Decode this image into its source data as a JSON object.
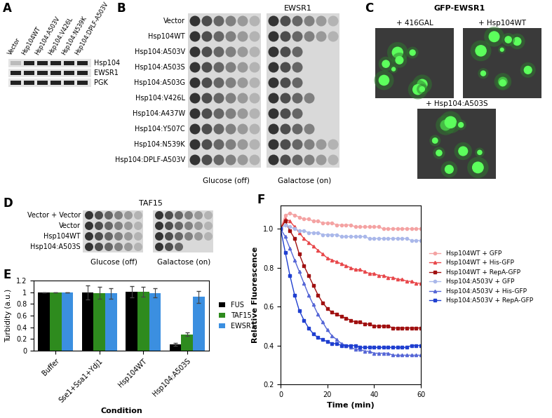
{
  "panels": {
    "A": {
      "label": "A",
      "columns": [
        "Vector",
        "Hsp104WT",
        "Hsp104:A503V",
        "Hsp104:V426L",
        "Hsp104:N539K",
        "Hsp104:DPLF-A503V"
      ],
      "rows": [
        "Hsp104",
        "EWSR1",
        "PGK"
      ]
    },
    "B": {
      "label": "B",
      "title": "EWSR1",
      "rows": [
        "Vector",
        "Hsp104WT",
        "Hsp104:A503V",
        "Hsp104:A503S",
        "Hsp104:A503G",
        "Hsp104:V426L",
        "Hsp104:A437W",
        "Hsp104:Y507C",
        "Hsp104:N539K",
        "Hsp104:DPLF-A503V"
      ],
      "conditions": [
        "Glucose (off)",
        "Galactose (on)"
      ]
    },
    "C": {
      "label": "C",
      "title": "GFP-EWSR1",
      "images": [
        "+ 416GAL",
        "+ Hsp104WT",
        "+ Hsp104:A503S"
      ]
    },
    "D": {
      "label": "D",
      "title": "TAF15",
      "rows": [
        "Vector + Vector",
        "Vector",
        "Hsp104WT",
        "Hsp104:A503S"
      ],
      "conditions": [
        "Glucose (off)",
        "Galactose (on)"
      ]
    }
  },
  "chart_data": [
    {
      "type": "bar",
      "annotations": [
        "E"
      ],
      "x_label": "Condition",
      "y_label": "Turbidity (a.u.)",
      "categories": [
        "Buffer",
        "Sse1+Ssa1+Ydj1",
        "Hsp104WT",
        "Hsp104:A503S"
      ],
      "series": [
        {
          "name": "FUS",
          "color": "#000000",
          "values": [
            1,
            1.0,
            1.01,
            0.11
          ],
          "errors": [
            0,
            0.12,
            0.1,
            0.02
          ]
        },
        {
          "name": "TAF15",
          "color": "#2e8b1e",
          "values": [
            1,
            0.99,
            1.01,
            0.28
          ],
          "errors": [
            0,
            0.1,
            0.08,
            0.03
          ]
        },
        {
          "name": "EWSR1",
          "color": "#3b8fe0",
          "values": [
            1,
            0.98,
            0.99,
            0.92
          ],
          "errors": [
            0,
            0.09,
            0.08,
            0.1
          ]
        }
      ],
      "ylim": [
        0,
        1.2
      ],
      "yticks": [
        0,
        0.2,
        0.4,
        0.6,
        0.8,
        1,
        1.2
      ],
      "legend": "right"
    },
    {
      "type": "line",
      "annotations": [
        "F"
      ],
      "x_label": "Time (min)",
      "y_label": "Relative Fluorescence",
      "x": [
        0,
        2,
        4,
        6,
        8,
        10,
        12,
        14,
        16,
        18,
        20,
        22,
        24,
        26,
        28,
        30,
        32,
        34,
        36,
        38,
        40,
        42,
        44,
        46,
        48,
        50,
        52,
        54,
        56,
        58,
        60
      ],
      "series": [
        {
          "name": "Hsp104WT + GFP",
          "color": "#f4a3a3",
          "marker": "circle",
          "values": [
            1.0,
            1.07,
            1.08,
            1.07,
            1.06,
            1.05,
            1.05,
            1.04,
            1.04,
            1.03,
            1.03,
            1.03,
            1.02,
            1.02,
            1.02,
            1.02,
            1.01,
            1.01,
            1.01,
            1.01,
            1.01,
            1.01,
            1.0,
            1.0,
            1.0,
            1.0,
            1.0,
            1.0,
            1.0,
            1.0,
            1.0
          ]
        },
        {
          "name": "Hsp104WT + His-GFP",
          "color": "#e8474a",
          "marker": "triangle",
          "values": [
            1.0,
            1.05,
            1.04,
            1.01,
            0.98,
            0.95,
            0.93,
            0.91,
            0.89,
            0.87,
            0.85,
            0.84,
            0.83,
            0.82,
            0.81,
            0.8,
            0.79,
            0.79,
            0.78,
            0.77,
            0.77,
            0.76,
            0.76,
            0.75,
            0.75,
            0.74,
            0.74,
            0.73,
            0.73,
            0.72,
            0.72
          ]
        },
        {
          "name": "Hsp104WT + RepA-GFP",
          "color": "#a01010",
          "marker": "square",
          "values": [
            1.0,
            1.04,
            0.99,
            0.95,
            0.87,
            0.81,
            0.76,
            0.71,
            0.66,
            0.62,
            0.59,
            0.57,
            0.56,
            0.55,
            0.54,
            0.53,
            0.52,
            0.52,
            0.51,
            0.51,
            0.5,
            0.5,
            0.5,
            0.5,
            0.49,
            0.49,
            0.49,
            0.49,
            0.49,
            0.49,
            0.49
          ]
        },
        {
          "name": "Hsp104:A503V + GFP",
          "color": "#aab8ea",
          "marker": "circle",
          "values": [
            1.0,
            1.02,
            1.01,
            1.0,
            0.99,
            0.99,
            0.98,
            0.98,
            0.98,
            0.97,
            0.97,
            0.97,
            0.97,
            0.96,
            0.96,
            0.96,
            0.96,
            0.96,
            0.96,
            0.95,
            0.95,
            0.95,
            0.95,
            0.95,
            0.95,
            0.95,
            0.95,
            0.95,
            0.94,
            0.94,
            0.94
          ]
        },
        {
          "name": "Hsp104:A503V + His-GFP",
          "color": "#5566d6",
          "marker": "triangle",
          "values": [
            1.0,
            0.96,
            0.9,
            0.84,
            0.78,
            0.72,
            0.66,
            0.61,
            0.56,
            0.52,
            0.48,
            0.45,
            0.43,
            0.41,
            0.4,
            0.39,
            0.38,
            0.38,
            0.37,
            0.37,
            0.36,
            0.36,
            0.36,
            0.36,
            0.35,
            0.35,
            0.35,
            0.35,
            0.35,
            0.35,
            0.35
          ]
        },
        {
          "name": "Hsp104:A503V + RepA-GFP",
          "color": "#1f3fd0",
          "marker": "square",
          "values": [
            1.0,
            0.88,
            0.76,
            0.66,
            0.58,
            0.53,
            0.49,
            0.46,
            0.44,
            0.43,
            0.42,
            0.41,
            0.41,
            0.4,
            0.4,
            0.4,
            0.4,
            0.39,
            0.39,
            0.39,
            0.39,
            0.39,
            0.39,
            0.39,
            0.39,
            0.39,
            0.39,
            0.39,
            0.4,
            0.4,
            0.4
          ]
        }
      ],
      "xlim": [
        0,
        60
      ],
      "xticks": [
        0,
        20,
        40,
        60
      ],
      "ylim": [
        0.2,
        1.12
      ],
      "yticks": [
        0.2,
        0.4,
        0.6,
        0.8,
        {
          "value": 1,
          "label": "1.0"
        }
      ],
      "legend": "right"
    }
  ]
}
